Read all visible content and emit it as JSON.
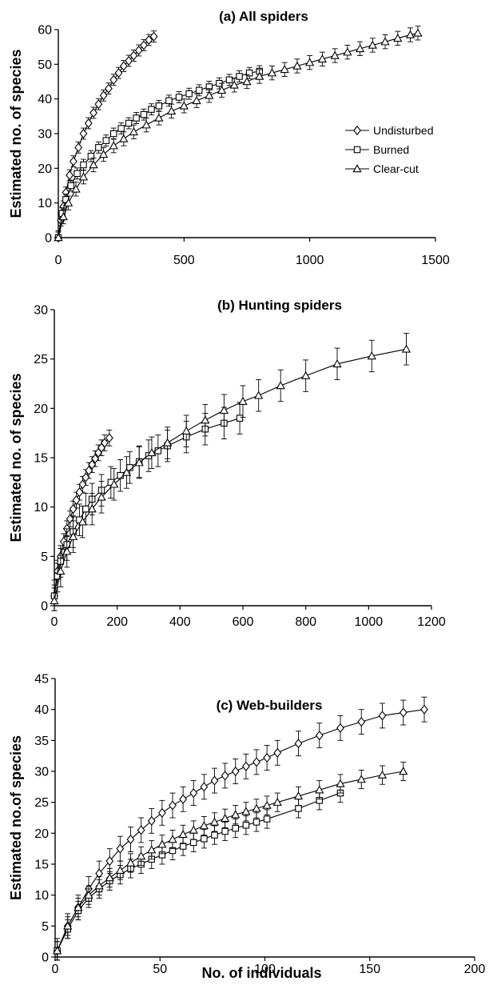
{
  "chart_data": [
    {
      "type": "line",
      "title": "(a) All spiders",
      "ylabel": "Estimated no. of species",
      "xlabel": "",
      "xlim": [
        0,
        1500
      ],
      "ylim": [
        0,
        60
      ],
      "xticks": [
        0,
        500,
        1000,
        1500
      ],
      "yticks": [
        0,
        10,
        20,
        30,
        40,
        50,
        60
      ],
      "legend": {
        "position": "right",
        "entries": [
          "Undisturbed",
          "Burned",
          "Clear-cut"
        ]
      },
      "series": [
        {
          "name": "Undisturbed",
          "marker": "diamond",
          "err": 1.6,
          "x": [
            0,
            10,
            20,
            30,
            45,
            60,
            80,
            100,
            120,
            140,
            160,
            180,
            200,
            220,
            240,
            260,
            280,
            300,
            320,
            340,
            360,
            380
          ],
          "y": [
            0,
            5,
            9,
            13,
            18,
            22,
            26,
            30,
            33,
            36,
            38.5,
            41,
            43,
            45.5,
            47.5,
            49.5,
            51,
            52.5,
            54,
            55.5,
            57,
            58
          ]
        },
        {
          "name": "Burned",
          "marker": "square",
          "err": 1.6,
          "x": [
            0,
            15,
            30,
            50,
            75,
            100,
            130,
            160,
            190,
            220,
            250,
            280,
            310,
            340,
            370,
            400,
            440,
            480,
            520,
            560,
            600,
            640,
            680,
            720,
            760,
            800
          ],
          "y": [
            0,
            7,
            11,
            15,
            18.5,
            21,
            23.5,
            26,
            28,
            30,
            31.5,
            33,
            34.5,
            35.5,
            37,
            38,
            39.5,
            40.5,
            41.5,
            42.5,
            43.5,
            44.5,
            45.5,
            46.5,
            47.5,
            48
          ]
        },
        {
          "name": "Clear-cut",
          "marker": "triangle",
          "err": 2.0,
          "x": [
            0,
            20,
            40,
            70,
            100,
            140,
            180,
            220,
            260,
            300,
            350,
            400,
            450,
            500,
            550,
            600,
            650,
            700,
            750,
            800,
            850,
            900,
            950,
            1000,
            1050,
            1100,
            1150,
            1200,
            1250,
            1300,
            1350,
            1400,
            1430
          ],
          "y": [
            0,
            6,
            10,
            14,
            17.5,
            21,
            24,
            26.5,
            28.5,
            30.5,
            32.5,
            34.5,
            36.5,
            38,
            39.5,
            41,
            42.5,
            44,
            45,
            46.5,
            47.5,
            48.5,
            49.5,
            50.5,
            51.5,
            52.5,
            53.5,
            54.5,
            55.5,
            56.5,
            57.5,
            58.5,
            59
          ]
        }
      ]
    },
    {
      "type": "line",
      "title": "(b) Hunting spiders",
      "ylabel": "Estimated no. of species",
      "xlabel": "",
      "xlim": [
        0,
        1200
      ],
      "ylim": [
        0,
        30
      ],
      "xticks": [
        0,
        200,
        400,
        600,
        800,
        1000,
        1200
      ],
      "yticks": [
        0,
        5,
        10,
        15,
        20,
        25,
        30
      ],
      "series": [
        {
          "name": "Undisturbed",
          "marker": "diamond",
          "err": 0.8,
          "x": [
            0,
            10,
            20,
            30,
            40,
            50,
            60,
            70,
            80,
            90,
            100,
            110,
            120,
            130,
            140,
            150,
            160,
            175
          ],
          "y": [
            1,
            3.5,
            5,
            6.5,
            7.8,
            8.8,
            9.8,
            10.7,
            11.5,
            12.3,
            13,
            13.7,
            14.3,
            14.9,
            15.5,
            16,
            16.5,
            17
          ]
        },
        {
          "name": "Burned",
          "marker": "square",
          "err": 1.6,
          "x": [
            0,
            10,
            20,
            40,
            60,
            80,
            100,
            120,
            150,
            180,
            210,
            240,
            270,
            300,
            330,
            360,
            420,
            480,
            540,
            590
          ],
          "y": [
            1,
            3,
            4.5,
            6.2,
            7.5,
            8.7,
            9.8,
            10.8,
            11.7,
            12.5,
            13.2,
            14,
            14.6,
            15.2,
            15.7,
            16.2,
            17.1,
            17.9,
            18.5,
            19
          ]
        },
        {
          "name": "Clear-cut",
          "marker": "triangle",
          "err": 1.6,
          "x": [
            0,
            20,
            40,
            60,
            90,
            120,
            150,
            190,
            230,
            270,
            310,
            360,
            420,
            480,
            540,
            600,
            650,
            720,
            800,
            900,
            1010,
            1120
          ],
          "y": [
            0.5,
            3.5,
            5.5,
            7,
            8.5,
            9.8,
            11,
            12.3,
            13.5,
            14.5,
            15.5,
            16.5,
            17.7,
            18.8,
            19.8,
            20.7,
            21.3,
            22.3,
            23.3,
            24.5,
            25.3,
            26
          ]
        }
      ]
    },
    {
      "type": "line",
      "title": "(c) Web-builders",
      "ylabel": "Estimated no.of species",
      "xlabel": "No. of individuals",
      "xlim": [
        0,
        200
      ],
      "ylim": [
        0,
        45
      ],
      "xticks": [
        0,
        50,
        100,
        150,
        200
      ],
      "yticks": [
        0,
        5,
        10,
        15,
        20,
        25,
        30,
        35,
        40,
        45
      ],
      "series": [
        {
          "name": "Undisturbed",
          "marker": "diamond",
          "err": 2.0,
          "x": [
            1,
            6,
            11,
            16,
            21,
            26,
            31,
            36,
            41,
            46,
            51,
            56,
            61,
            66,
            71,
            76,
            81,
            86,
            91,
            96,
            101,
            106,
            116,
            126,
            136,
            146,
            156,
            166,
            176
          ],
          "y": [
            1,
            5,
            8,
            11,
            13.5,
            15.5,
            17.5,
            19,
            20.5,
            22,
            23.3,
            24.5,
            25.5,
            26.5,
            27.5,
            28.5,
            29.3,
            30,
            30.8,
            31.5,
            32.2,
            33,
            34.5,
            35.8,
            37,
            38,
            39,
            39.5,
            40
          ]
        },
        {
          "name": "Burned",
          "marker": "square",
          "err": 1.5,
          "x": [
            1,
            6,
            11,
            16,
            21,
            26,
            31,
            36,
            41,
            46,
            51,
            56,
            61,
            66,
            71,
            76,
            81,
            86,
            91,
            96,
            101,
            116,
            126,
            136
          ],
          "y": [
            1,
            4.5,
            7.5,
            9.5,
            11,
            12.3,
            13.3,
            14.3,
            15,
            15.8,
            16.5,
            17.2,
            17.9,
            18.5,
            19.1,
            19.7,
            20.3,
            20.8,
            21.3,
            21.8,
            22.3,
            24,
            25.3,
            26.5
          ]
        },
        {
          "name": "Clear-cut",
          "marker": "triangle",
          "err": 1.5,
          "x": [
            1,
            6,
            11,
            16,
            21,
            26,
            31,
            36,
            41,
            46,
            51,
            56,
            61,
            66,
            71,
            76,
            81,
            86,
            91,
            96,
            101,
            106,
            116,
            126,
            136,
            146,
            156,
            166
          ],
          "y": [
            1,
            5,
            8,
            10,
            11.5,
            12.8,
            14,
            15.2,
            16.3,
            17.3,
            18.2,
            19,
            19.8,
            20.5,
            21.2,
            21.8,
            22.4,
            23,
            23.5,
            24,
            24.5,
            25,
            26,
            27,
            28,
            28.7,
            29.4,
            30
          ]
        }
      ]
    }
  ]
}
